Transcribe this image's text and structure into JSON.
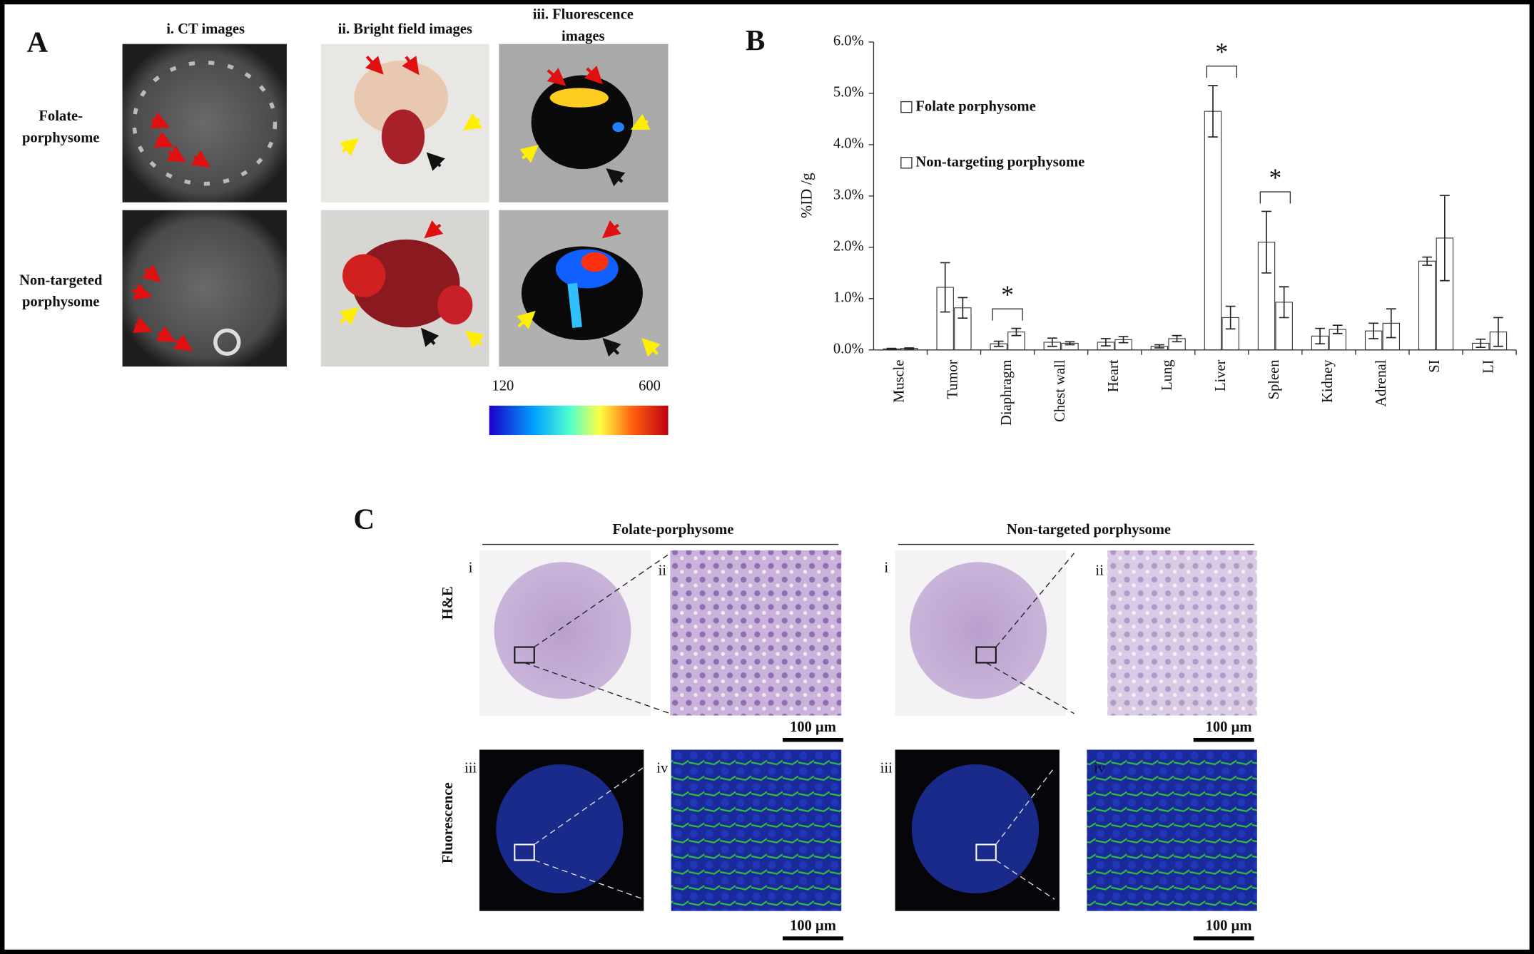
{
  "panel_a": {
    "label": "A",
    "column_titles": [
      [
        "i. CT images"
      ],
      [
        "ii. Bright field images"
      ],
      [
        "iii. Fluorescence",
        "images"
      ]
    ],
    "row_titles": [
      [
        "Folate-",
        "porphysome"
      ],
      [
        "Non-targeted",
        "porphysome"
      ]
    ],
    "colorbar": {
      "min": 120,
      "max": 600
    }
  },
  "panel_b": {
    "label": "B"
  },
  "chart_data": {
    "type": "bar",
    "y_label": "%ID /g",
    "categories": [
      "Muscle",
      "Tumor",
      "Diaphragm",
      "Chest wall",
      "Heart",
      "Lung",
      "Liver",
      "Spleen",
      "Kidney",
      "Adrenal",
      "SI",
      "LI"
    ],
    "series": [
      {
        "name": "Folate porphysome",
        "color": "#f2f2f2",
        "pattern": "dotted",
        "values": [
          0.02,
          1.22,
          0.12,
          0.15,
          0.15,
          0.07,
          4.65,
          2.1,
          0.27,
          0.37,
          1.73,
          0.13
        ],
        "errors": [
          0.01,
          0.48,
          0.05,
          0.08,
          0.07,
          0.03,
          0.5,
          0.6,
          0.15,
          0.15,
          0.08,
          0.08
        ]
      },
      {
        "name": "Non-targeting porphysome",
        "color": "#1a1a1a",
        "pattern": "checkered",
        "values": [
          0.03,
          0.82,
          0.35,
          0.13,
          0.2,
          0.22,
          0.63,
          0.93,
          0.4,
          0.52,
          2.18,
          0.35
        ],
        "errors": [
          0.01,
          0.2,
          0.07,
          0.03,
          0.06,
          0.06,
          0.22,
          0.3,
          0.08,
          0.28,
          0.83,
          0.28
        ]
      }
    ],
    "significance": [
      null,
      null,
      "*",
      null,
      null,
      null,
      "*",
      "*",
      null,
      null,
      null,
      null
    ],
    "ylim": [
      0,
      6
    ],
    "yticks": [
      {
        "value": 0,
        "label": "0.0%"
      },
      {
        "value": 1,
        "label": "1.0%"
      },
      {
        "value": 2,
        "label": "2.0%"
      },
      {
        "value": 3,
        "label": "3.0%"
      },
      {
        "value": 4,
        "label": "4.0%"
      },
      {
        "value": 5,
        "label": "5.0%"
      },
      {
        "value": 6,
        "label": "6.0%"
      }
    ],
    "grid": false,
    "legend": "upper-left"
  },
  "panel_c": {
    "label": "C",
    "groups": [
      "Folate-porphysome",
      "Non-targeted porphysome"
    ],
    "rows": [
      "H&E",
      "Fluorescence"
    ],
    "subpanels": [
      "i",
      "ii",
      "iii",
      "iv"
    ],
    "scale_bar": "100 µm"
  }
}
